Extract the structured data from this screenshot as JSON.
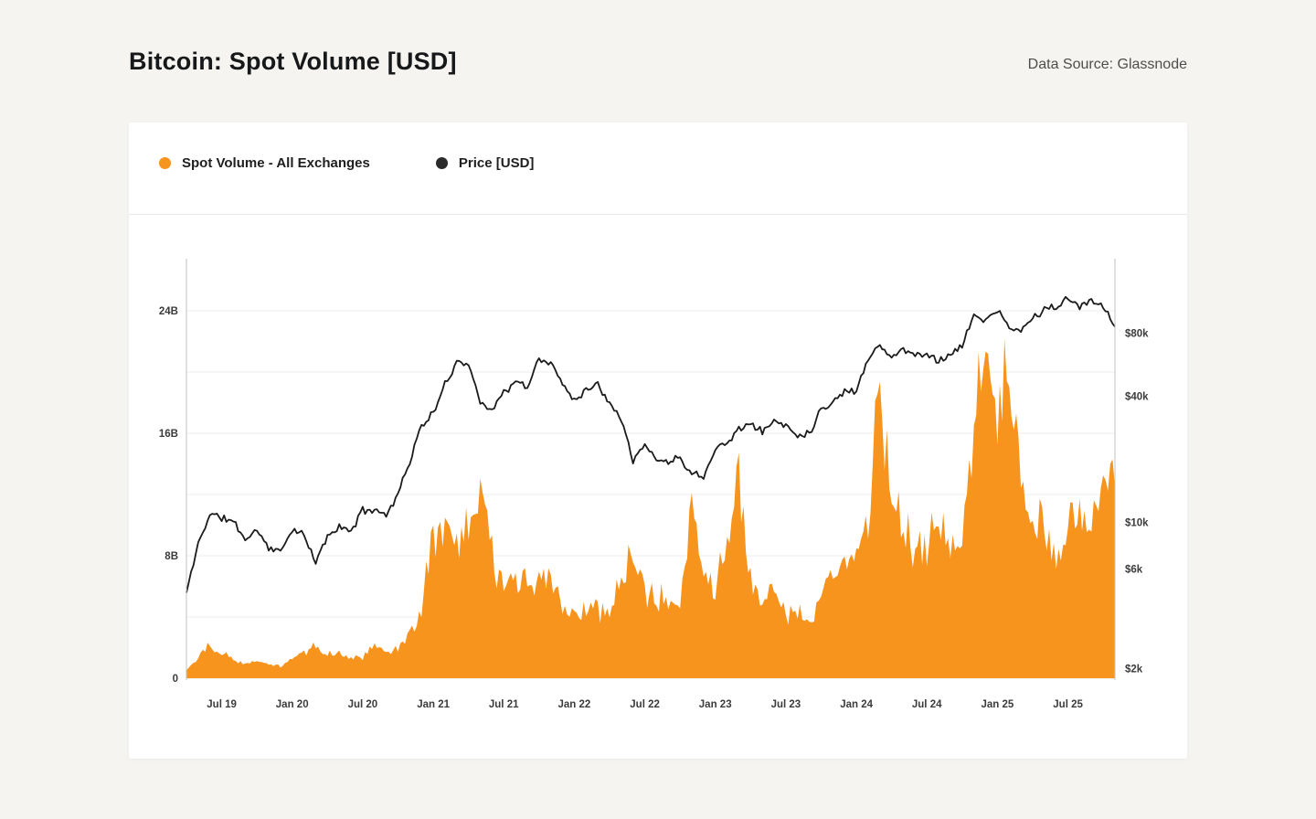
{
  "page": {
    "title": "Bitcoin: Spot Volume [USD]",
    "data_source": "Data Source: Glassnode"
  },
  "legend": {
    "items": [
      {
        "label": "Spot Volume - All Exchanges",
        "color": "#F7941D"
      },
      {
        "label": "Price [USD]",
        "color": "#2B2B2B"
      }
    ]
  },
  "colors": {
    "background": "#F5F4F1",
    "card": "#FFFFFF",
    "grid": "#ECECEC",
    "axis_border": "#C2C2C2",
    "volume": "#F7941D",
    "price": "#1B1B1B"
  },
  "chart_data": {
    "type": "area+line",
    "title": "Bitcoin: Spot Volume [USD]",
    "source": "Data Source: Glassnode",
    "x_monthly_start": "2019-04",
    "x_monthly_end": "2025-11",
    "x_ticks": [
      {
        "label": "Jul 19",
        "month_index": 3
      },
      {
        "label": "Jan 20",
        "month_index": 9
      },
      {
        "label": "Jul 20",
        "month_index": 15
      },
      {
        "label": "Jan 21",
        "month_index": 21
      },
      {
        "label": "Jul 21",
        "month_index": 27
      },
      {
        "label": "Jan 22",
        "month_index": 33
      },
      {
        "label": "Jul 22",
        "month_index": 39
      },
      {
        "label": "Jan 23",
        "month_index": 45
      },
      {
        "label": "Jul 23",
        "month_index": 51
      },
      {
        "label": "Jan 24",
        "month_index": 57
      },
      {
        "label": "Jul 24",
        "month_index": 63
      },
      {
        "label": "Jan 25",
        "month_index": 69
      },
      {
        "label": "Jul 25",
        "month_index": 75
      }
    ],
    "left_axis": {
      "title": "Spot Volume (USD, billions)",
      "scale": "linear",
      "range": [
        0,
        27.4
      ],
      "tick_values": [
        24,
        16,
        8,
        0
      ],
      "tick_labels": [
        "24B",
        "16B",
        "8B",
        "0"
      ],
      "grid_values": [
        0,
        4,
        8,
        12,
        16,
        20,
        24
      ]
    },
    "right_axis": {
      "title": "Price (USD)",
      "scale": "log",
      "range": [
        1800,
        182000
      ],
      "tick_values": [
        80000,
        40000,
        10000,
        6000,
        2000
      ],
      "tick_labels": [
        "$80k",
        "$40k",
        "$10k",
        "$6k",
        "$2k"
      ]
    },
    "series": [
      {
        "name": "Spot Volume - All Exchanges",
        "type": "area",
        "axis": "left",
        "color": "#F7941D",
        "unit": "billion USD",
        "monthly_values": [
          0.6,
          1.4,
          2.1,
          1.7,
          1.2,
          1.0,
          1.1,
          0.9,
          0.8,
          1.3,
          1.6,
          2.1,
          1.5,
          1.7,
          1.3,
          1.4,
          2.0,
          1.7,
          1.8,
          2.8,
          4.5,
          9.5,
          9.8,
          8.5,
          10.5,
          13.0,
          8.5,
          5.5,
          6.5,
          6.0,
          6.5,
          6.5,
          5.0,
          4.5,
          4.2,
          4.5,
          4.0,
          6.5,
          7.5,
          5.5,
          5.0,
          5.5,
          5.0,
          12.0,
          6.0,
          6.0,
          9.0,
          12.5,
          6.5,
          5.0,
          6.0,
          4.0,
          4.5,
          3.5,
          5.5,
          7.0,
          7.5,
          9.0,
          10.5,
          18.5,
          12.0,
          9.5,
          8.5,
          8.0,
          10.5,
          8.0,
          9.5,
          16.0,
          21.5,
          17.0,
          20.0,
          12.0,
          10.5,
          9.5,
          8.0,
          9.5,
          10.5,
          9.0,
          13.5,
          12.5
        ]
      },
      {
        "name": "Price [USD]",
        "type": "line",
        "axis": "right",
        "color": "#1B1B1B",
        "unit": "USD",
        "monthly_values": [
          4600,
          7900,
          11000,
          10500,
          10100,
          8300,
          9200,
          7600,
          7200,
          9350,
          8600,
          6400,
          8650,
          9450,
          9150,
          11350,
          11650,
          10800,
          13800,
          19600,
          29000,
          33100,
          45200,
          58800,
          57700,
          37300,
          35000,
          41500,
          47100,
          43800,
          61300,
          57000,
          46200,
          38500,
          43200,
          45500,
          37700,
          31800,
          19900,
          23300,
          20050,
          19400,
          20500,
          17200,
          16550,
          23100,
          23500,
          28500,
          29250,
          27200,
          30450,
          29250,
          26000,
          26950,
          34650,
          37700,
          42250,
          42600,
          61200,
          71300,
          60600,
          67500,
          62700,
          64600,
          59000,
          63300,
          70200,
          96400,
          93400,
          102400,
          84400,
          82500,
          94200,
          104600,
          107100,
          115800,
          108200,
          114000,
          110100,
          86000
        ]
      }
    ]
  }
}
